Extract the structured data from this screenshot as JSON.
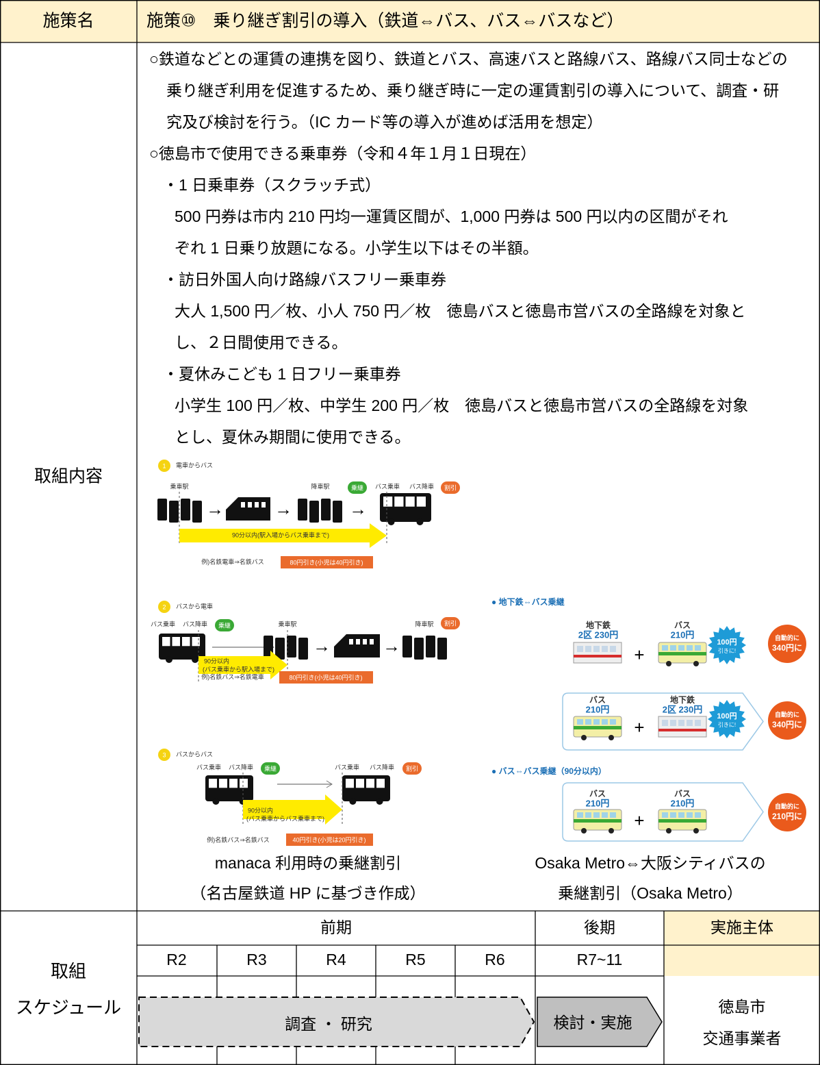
{
  "header": {
    "label": "施策名",
    "title": "施策⑩　乗り継ぎ割引の導入（鉄道⇔バス、バス⇔バスなど）"
  },
  "content": {
    "label": "取組内容",
    "lines": [
      "○鉄道などとの運賃の連携を図り、鉄道とバス、高速バスと路線バス、路線バス同士などの",
      "乗り継ぎ利用を促進するため、乗り継ぎ時に一定の運賃割引の導入について、調査・研",
      "究及び検討を行う。（IC カード等の導入が進めば活用を想定）",
      "○徳島市で使用できる乗車券（令和４年１月１日現在）",
      "・1 日乗車券（スクラッチ式）",
      "500 円券は市内 210 円均一運賃区間が、1,000 円券は 500 円以内の区間がそれ",
      "ぞれ 1 日乗り放題になる。小学生以下はその半額。",
      "・訪日外国人向け路線バスフリー乗車券",
      "大人 1,500 円／枚、小人 750 円／枚　徳島バスと徳島市営バスの全路線を対象と",
      "し、２日間使用できる。",
      "・夏休みこども 1 日フリー乗車券",
      "小学生 100 円／枚、中学生 200 円／枚　徳島バスと徳島市営バスの全路線を対象",
      "とし、夏休み期間に使用できる。"
    ]
  },
  "figures": {
    "left": [
      {
        "num": "1",
        "title": "電車からバス",
        "labels": [
          "乗車駅",
          "降車駅",
          "乗継",
          "バス乗車",
          "バス降車",
          "割引"
        ],
        "period": [
          "90分以内(駅入場からバス乗車まで)"
        ],
        "example": "例)名鉄電車⇒名鉄バス",
        "discount": "80円引き(小児は40円引き)"
      },
      {
        "num": "2",
        "title": "バスから電車",
        "labels": [
          "バス乗車",
          "バス降車",
          "乗継",
          "乗車駅",
          "降車駅",
          "割引"
        ],
        "period": [
          "90分以内",
          "(バス乗車から駅入場まで)"
        ],
        "example": "例)名鉄バス⇒名鉄電車",
        "discount": "80円引き(小児は40円引き)"
      },
      {
        "num": "3",
        "title": "バスからバス",
        "labels": [
          "バス乗車",
          "バス降車",
          "乗継",
          "バス乗車",
          "バス降車",
          "割引"
        ],
        "period": [
          "90分以内",
          "(バス乗車からバス乗車まで)"
        ],
        "example": "例)名鉄バス⇒名鉄バス",
        "discount": "40円引き(小児は20円引き)"
      }
    ],
    "right": {
      "heading1": "● 地下鉄⇔バス乗継",
      "heading2": "● バス⇔バス乗継（90分以内）",
      "subway": "地下鉄",
      "subway_fare": "2区 230円",
      "bus": "バス",
      "bus_fare": "210円",
      "discount": [
        "100円",
        "引きに!"
      ],
      "result1": [
        "自動的に",
        "340円に"
      ],
      "result2": [
        "自動的に",
        "210円に"
      ]
    },
    "captions": {
      "left": [
        "manaca 利用時の乗継割引",
        "（名古屋鉄道 HP に基づき作成）"
      ],
      "right": [
        "Osaka Metro⇔大阪シティバスの",
        "乗継割引（Osaka Metro）"
      ]
    }
  },
  "schedule": {
    "label": [
      "取組",
      "スケジュール"
    ],
    "phases": [
      "前期",
      "後期"
    ],
    "owner_label": "実施主体",
    "years": [
      "R2",
      "R3",
      "R4",
      "R5",
      "R6",
      "R7~11"
    ],
    "tasks": [
      "調査 ・ 研究",
      "検討・実施"
    ],
    "owner": [
      "徳島市",
      "交通事業者"
    ]
  }
}
